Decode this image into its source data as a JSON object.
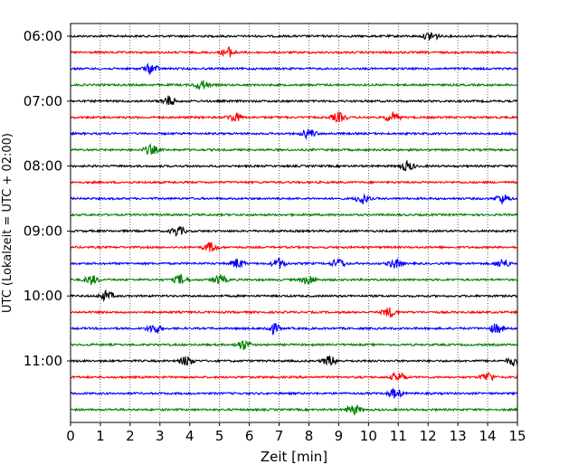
{
  "chart_data": {
    "type": "line",
    "xlabel": "Zeit  [min]",
    "ylabel": "UTC (Lokalzeit = UTC + 02:00)",
    "xlim": [
      0,
      15
    ],
    "xticks": [
      0,
      1,
      2,
      3,
      4,
      5,
      6,
      7,
      8,
      9,
      10,
      11,
      12,
      13,
      14,
      15
    ],
    "xtick_labels": [
      "0",
      "1",
      "2",
      "3",
      "4",
      "5",
      "6",
      "7",
      "8",
      "9",
      "10",
      "11",
      "12",
      "13",
      "14",
      "15"
    ],
    "yticks": [
      {
        "label": "06:00",
        "row": 0
      },
      {
        "label": "07:00",
        "row": 4
      },
      {
        "label": "08:00",
        "row": 8
      },
      {
        "label": "09:00",
        "row": 12
      },
      {
        "label": "10:00",
        "row": 16
      },
      {
        "label": "11:00",
        "row": 20
      }
    ],
    "grid": "vertical-dotted",
    "row_interval_minutes": 15,
    "row_colors": [
      "#000000",
      "#ff0000",
      "#0000ff",
      "#008000"
    ],
    "rows": [
      {
        "time": "06:00",
        "color": "#000000",
        "events": [
          12.1
        ]
      },
      {
        "time": "06:15",
        "color": "#ff0000",
        "events": [
          5.3
        ]
      },
      {
        "time": "06:30",
        "color": "#0000ff",
        "events": [
          2.7
        ]
      },
      {
        "time": "06:45",
        "color": "#008000",
        "events": [
          4.4
        ]
      },
      {
        "time": "07:00",
        "color": "#000000",
        "events": [
          3.3
        ]
      },
      {
        "time": "07:15",
        "color": "#ff0000",
        "events": [
          5.5,
          9.0,
          10.8
        ]
      },
      {
        "time": "07:30",
        "color": "#0000ff",
        "events": [
          8.0
        ]
      },
      {
        "time": "07:45",
        "color": "#008000",
        "events": [
          2.7
        ]
      },
      {
        "time": "08:00",
        "color": "#000000",
        "events": [
          11.3
        ]
      },
      {
        "time": "08:15",
        "color": "#ff0000",
        "events": []
      },
      {
        "time": "08:30",
        "color": "#0000ff",
        "events": [
          9.8,
          14.5
        ]
      },
      {
        "time": "08:45",
        "color": "#008000",
        "events": []
      },
      {
        "time": "09:00",
        "color": "#000000",
        "events": [
          3.6
        ]
      },
      {
        "time": "09:15",
        "color": "#ff0000",
        "events": [
          4.7
        ]
      },
      {
        "time": "09:30",
        "color": "#0000ff",
        "events": [
          5.6,
          7.0,
          9.0,
          10.9,
          14.5
        ]
      },
      {
        "time": "09:45",
        "color": "#008000",
        "events": [
          0.7,
          3.7,
          5.0,
          8.0
        ]
      },
      {
        "time": "10:00",
        "color": "#000000",
        "events": [
          1.2
        ]
      },
      {
        "time": "10:15",
        "color": "#ff0000",
        "events": [
          10.7
        ]
      },
      {
        "time": "10:30",
        "color": "#0000ff",
        "events": [
          2.8,
          6.8,
          14.3
        ]
      },
      {
        "time": "10:45",
        "color": "#008000",
        "events": [
          5.8
        ]
      },
      {
        "time": "11:00",
        "color": "#000000",
        "events": [
          3.9,
          8.7,
          14.9
        ]
      },
      {
        "time": "11:15",
        "color": "#ff0000",
        "events": [
          11.0,
          14.0
        ]
      },
      {
        "time": "11:30",
        "color": "#0000ff",
        "events": [
          10.9
        ]
      },
      {
        "time": "11:45",
        "color": "#008000",
        "events": [
          9.5
        ]
      }
    ]
  }
}
